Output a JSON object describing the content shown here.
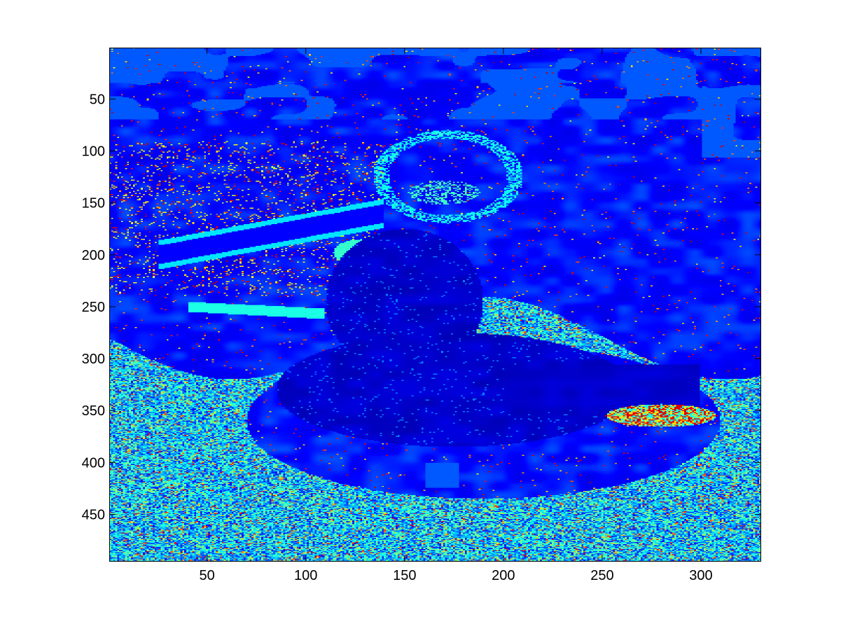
{
  "chart_data": {
    "type": "heatmap",
    "title": "",
    "xlabel": "",
    "ylabel": "",
    "colormap": "jet",
    "colormap_stops": [
      "#00008f",
      "#0000ff",
      "#00ffff",
      "#ffff00",
      "#ff0000",
      "#800000"
    ],
    "image_size": {
      "columns": 330,
      "rows": 495
    },
    "xlim": [
      0.5,
      330.5
    ],
    "ylim": [
      0.5,
      495.5
    ],
    "y_reversed": true,
    "x_ticks": [
      50,
      100,
      150,
      200,
      250,
      300
    ],
    "x_tick_labels": [
      "50",
      "100",
      "150",
      "200",
      "250",
      "300"
    ],
    "y_ticks": [
      50,
      100,
      150,
      200,
      250,
      300,
      350,
      400,
      450
    ],
    "y_tick_labels": [
      "50",
      "100",
      "150",
      "200",
      "250",
      "300",
      "350",
      "400",
      "450"
    ],
    "grid": false,
    "legend": "none",
    "dominant_colors": {
      "background": "#0a2fd0",
      "sky_patches": "#1e8fe6",
      "cyan_highlights": "#22e0f0",
      "yellow_speckle": "#f2d21e",
      "red_speckle": "#e83010"
    }
  }
}
